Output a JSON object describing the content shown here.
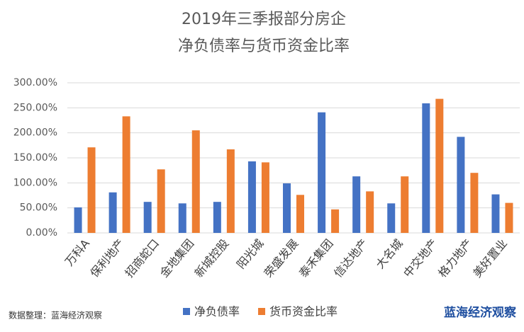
{
  "chart_data": {
    "type": "bar",
    "title": "2019年三季报部分房企",
    "subtitle": "净负债率与货币资金比率",
    "source": "数据整理：蓝海经济观察",
    "watermark": "蓝海经济观察",
    "categories": [
      "万科A",
      "保利地产",
      "招商蛇口",
      "金地集团",
      "新城控股",
      "阳光城",
      "荣盛发展",
      "泰禾集团",
      "信达地产",
      "大名城",
      "中交地产",
      "格力地产",
      "美好置业"
    ],
    "series": [
      {
        "name": "净负债率",
        "color": "#4472c4",
        "values": [
          51,
          81,
          62,
          59,
          62,
          143,
          99,
          241,
          113,
          59,
          259,
          192,
          77
        ]
      },
      {
        "name": "货币资金比率",
        "color": "#ed7d31",
        "values": [
          171,
          233,
          127,
          205,
          167,
          141,
          76,
          47,
          83,
          113,
          268,
          120,
          60
        ]
      }
    ],
    "ylim": [
      0,
      300
    ],
    "yticks": [
      {
        "value": 0,
        "label": "0.00%"
      },
      {
        "value": 50,
        "label": "50.00%"
      },
      {
        "value": 100,
        "label": "100.00%"
      },
      {
        "value": 150,
        "label": "150.00%"
      },
      {
        "value": 200,
        "label": "200.00%"
      },
      {
        "value": 250,
        "label": "250.00%"
      },
      {
        "value": 300,
        "label": "300.00%"
      }
    ],
    "grid": true,
    "legend": "bottom"
  }
}
